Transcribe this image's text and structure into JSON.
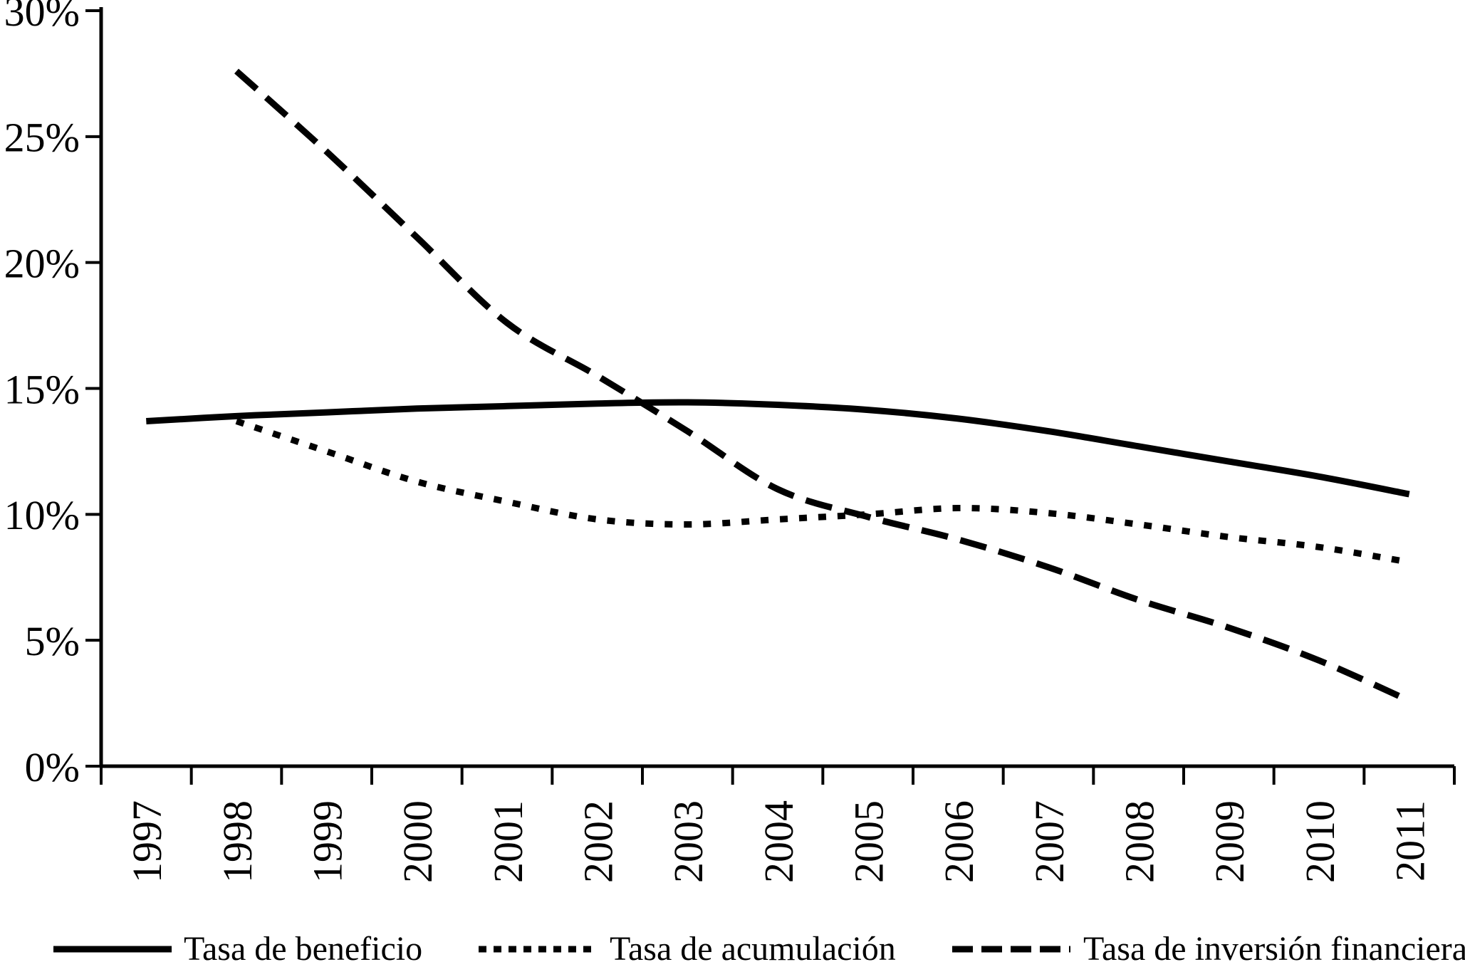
{
  "chart_data": {
    "type": "line",
    "title": "",
    "xlabel": "",
    "ylabel": "",
    "x_categories": [
      "1997",
      "1998",
      "1999",
      "2000",
      "2001",
      "2002",
      "2003",
      "2004",
      "2005",
      "2006",
      "2007",
      "2008",
      "2009",
      "2010",
      "2011"
    ],
    "ylim": [
      0,
      30
    ],
    "ytick_values": [
      0,
      5,
      10,
      15,
      20,
      25,
      30
    ],
    "ytick_labels": [
      "0%",
      "5%",
      "10%",
      "15%",
      "20%",
      "25%",
      "30%"
    ],
    "grid": false,
    "legend_position": "bottom",
    "line_color": "#000000",
    "background_color": "#ffffff",
    "series": [
      {
        "name": "Tasa de beneficio",
        "style": "solid",
        "values": [
          13.7,
          13.9,
          14.05,
          14.2,
          14.3,
          14.4,
          14.45,
          14.35,
          14.15,
          13.8,
          13.3,
          12.7,
          12.1,
          11.5,
          10.8
        ]
      },
      {
        "name": "Tasa de acumulación",
        "style": "dotted",
        "values": [
          null,
          13.7,
          12.5,
          11.3,
          10.5,
          9.8,
          9.6,
          9.8,
          10.0,
          10.25,
          10.05,
          9.6,
          9.1,
          8.7,
          8.1
        ]
      },
      {
        "name": "Tasa de inversión financiera",
        "style": "dashed",
        "values": [
          null,
          27.6,
          24.4,
          21.0,
          17.6,
          15.5,
          13.3,
          11.0,
          9.9,
          9.0,
          7.9,
          6.6,
          5.5,
          4.2,
          2.6
        ]
      }
    ]
  }
}
